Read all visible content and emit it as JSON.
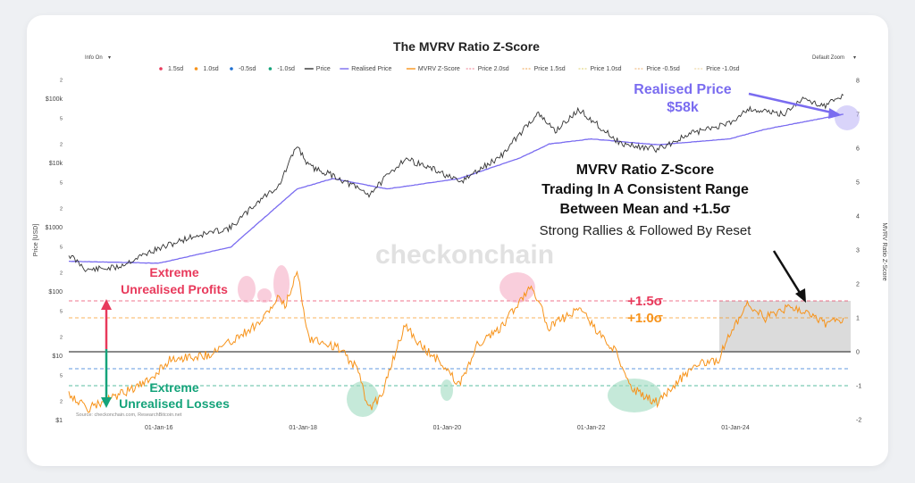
{
  "chart_data": {
    "type": "line",
    "title": "The MVRV Ratio Z-Score",
    "ylabel": "Price [USD]",
    "y2label": "MVRV Ratio Z-Score",
    "controls": {
      "info": "Info On",
      "zoom": "Default Zoom",
      "caret": "▾"
    },
    "legend": [
      {
        "name": "1.5sd",
        "color": "#e8395b",
        "kind": "dot"
      },
      {
        "name": "1.0sd",
        "color": "#f7931a",
        "kind": "dot"
      },
      {
        "name": "-0.5sd",
        "color": "#1f6fd1",
        "kind": "dot"
      },
      {
        "name": "-1.0sd",
        "color": "#14a37a",
        "kind": "dot"
      },
      {
        "name": "Price",
        "color": "#333333",
        "kind": "line"
      },
      {
        "name": "Realised Price",
        "color": "#7a6cf0",
        "kind": "line"
      },
      {
        "name": "MVRV Z-Score",
        "color": "#f7931a",
        "kind": "line"
      },
      {
        "name": "Price 2.0sd",
        "color": "#f3a7b3",
        "kind": "dash"
      },
      {
        "name": "Price 1.5sd",
        "color": "#f5c28a",
        "kind": "dash"
      },
      {
        "name": "Price 1.0sd",
        "color": "#e9e0a0",
        "kind": "dash"
      },
      {
        "name": "Price -0.5sd",
        "color": "#f3cba0",
        "kind": "dash"
      },
      {
        "name": "Price -1.0sd",
        "color": "#f0e0b8",
        "kind": "dash"
      }
    ],
    "x_ticks": [
      "01-Jan-16",
      "01-Jan-18",
      "01-Jan-20",
      "01-Jan-22",
      "01-Jan-24"
    ],
    "y_left_ticks": [
      "2",
      "$100k",
      "5",
      "2",
      "$10k",
      "5",
      "2",
      "$1000",
      "5",
      "2",
      "$100",
      "5",
      "2",
      "$10",
      "5",
      "2",
      "$1"
    ],
    "y_right_ticks": [
      "8",
      "7",
      "6",
      "5",
      "4",
      "3",
      "2",
      "1",
      "0",
      "-1",
      "-2"
    ],
    "y_right_range": [
      -2,
      8
    ],
    "bands": [
      {
        "label": "+1.5σ",
        "value": 1.5,
        "color": "#e8395b"
      },
      {
        "label": "+1.0σ",
        "value": 1.0,
        "color": "#f7931a"
      },
      {
        "label": "",
        "value": 0,
        "color": "#444444"
      },
      {
        "label": "",
        "value": -0.5,
        "color": "#1f6fd1"
      },
      {
        "label": "",
        "value": -1.0,
        "color": "#14a37a"
      }
    ],
    "zscore_points": [
      {
        "x": "2014-10",
        "y": -1.2
      },
      {
        "x": "2015-01",
        "y": -1.7
      },
      {
        "x": "2015-06",
        "y": -1.3
      },
      {
        "x": "2015-11",
        "y": -0.9
      },
      {
        "x": "2016-03",
        "y": -0.2
      },
      {
        "x": "2016-09",
        "y": -0.1
      },
      {
        "x": "2017-01",
        "y": 0.3
      },
      {
        "x": "2017-06",
        "y": 0.9
      },
      {
        "x": "2017-09",
        "y": 1.6
      },
      {
        "x": "2017-10",
        "y": 1.3
      },
      {
        "x": "2017-12",
        "y": 2.4
      },
      {
        "x": "2018-02",
        "y": 0.4
      },
      {
        "x": "2018-04",
        "y": 0.3
      },
      {
        "x": "2018-07",
        "y": 0.1
      },
      {
        "x": "2018-10",
        "y": -0.5
      },
      {
        "x": "2018-12",
        "y": -1.7
      },
      {
        "x": "2019-02",
        "y": -1.3
      },
      {
        "x": "2019-06",
        "y": 0.8
      },
      {
        "x": "2019-09",
        "y": 0.1
      },
      {
        "x": "2019-12",
        "y": -0.3
      },
      {
        "x": "2020-03",
        "y": -1.0
      },
      {
        "x": "2020-06",
        "y": 0.2
      },
      {
        "x": "2020-10",
        "y": 0.7
      },
      {
        "x": "2021-03",
        "y": 2.0
      },
      {
        "x": "2021-06",
        "y": 0.7
      },
      {
        "x": "2021-11",
        "y": 1.3
      },
      {
        "x": "2022-02",
        "y": 0.6
      },
      {
        "x": "2022-05",
        "y": 0.0
      },
      {
        "x": "2022-08",
        "y": -1.1
      },
      {
        "x": "2022-12",
        "y": -1.5
      },
      {
        "x": "2023-02",
        "y": -1.1
      },
      {
        "x": "2023-07",
        "y": -0.3
      },
      {
        "x": "2023-10",
        "y": -0.3
      },
      {
        "x": "2023-12",
        "y": 0.5
      },
      {
        "x": "2024-03",
        "y": 1.4
      },
      {
        "x": "2024-06",
        "y": 1.0
      },
      {
        "x": "2024-10",
        "y": 1.3
      },
      {
        "x": "2025-01",
        "y": 1.2
      },
      {
        "x": "2025-04",
        "y": 0.8
      },
      {
        "x": "2025-07",
        "y": 1.0
      }
    ],
    "price_points": [
      {
        "x": "2014-10",
        "y": 380
      },
      {
        "x": "2015-01",
        "y": 220
      },
      {
        "x": "2015-06",
        "y": 240
      },
      {
        "x": "2015-11",
        "y": 400
      },
      {
        "x": "2016-06",
        "y": 700
      },
      {
        "x": "2017-01",
        "y": 1000
      },
      {
        "x": "2017-06",
        "y": 2800
      },
      {
        "x": "2017-09",
        "y": 4500
      },
      {
        "x": "2017-12",
        "y": 19000
      },
      {
        "x": "2018-02",
        "y": 9000
      },
      {
        "x": "2018-06",
        "y": 6500
      },
      {
        "x": "2018-12",
        "y": 3300
      },
      {
        "x": "2019-06",
        "y": 12000
      },
      {
        "x": "2019-12",
        "y": 7200
      },
      {
        "x": "2020-03",
        "y": 5000
      },
      {
        "x": "2020-10",
        "y": 13000
      },
      {
        "x": "2021-04",
        "y": 60000
      },
      {
        "x": "2021-07",
        "y": 32000
      },
      {
        "x": "2021-11",
        "y": 68000
      },
      {
        "x": "2022-06",
        "y": 20000
      },
      {
        "x": "2022-12",
        "y": 16500
      },
      {
        "x": "2023-06",
        "y": 30000
      },
      {
        "x": "2023-12",
        "y": 42000
      },
      {
        "x": "2024-03",
        "y": 71000
      },
      {
        "x": "2024-09",
        "y": 58000
      },
      {
        "x": "2024-12",
        "y": 100000
      },
      {
        "x": "2025-04",
        "y": 80000
      },
      {
        "x": "2025-07",
        "y": 115000
      }
    ],
    "realised_points": [
      {
        "x": "2014-10",
        "y": 300
      },
      {
        "x": "2016-01",
        "y": 280
      },
      {
        "x": "2017-01",
        "y": 500
      },
      {
        "x": "2017-12",
        "y": 4000
      },
      {
        "x": "2018-06",
        "y": 5800
      },
      {
        "x": "2019-03",
        "y": 4000
      },
      {
        "x": "2020-03",
        "y": 5800
      },
      {
        "x": "2021-01",
        "y": 12000
      },
      {
        "x": "2021-06",
        "y": 20000
      },
      {
        "x": "2022-01",
        "y": 24000
      },
      {
        "x": "2022-12",
        "y": 19500
      },
      {
        "x": "2023-12",
        "y": 24000
      },
      {
        "x": "2024-06",
        "y": 34000
      },
      {
        "x": "2025-07",
        "y": 58000
      }
    ],
    "annotations": {
      "realised_title": "Realised Price",
      "realised_value": "$58k",
      "main_line1": "MVRV Ratio Z-Score",
      "main_line2": "Trading In A Consistent Range",
      "main_line3": "Between Mean and +1.5σ",
      "main_line4": "Strong Rallies & Followed By Reset",
      "profits_line1": "Extreme",
      "profits_line2": "Unrealised Profits",
      "losses_line1": "Extreme",
      "losses_line2": "Unrealised Losses",
      "watermark": "checkonchain",
      "source": "Source: checkonchain.com, ResearchBitcoin.net"
    },
    "colors": {
      "pink": "#e8395b",
      "green": "#14a37a",
      "orange": "#f7931a",
      "purple": "#7a6cf0",
      "blue": "#1f6fd1"
    }
  }
}
